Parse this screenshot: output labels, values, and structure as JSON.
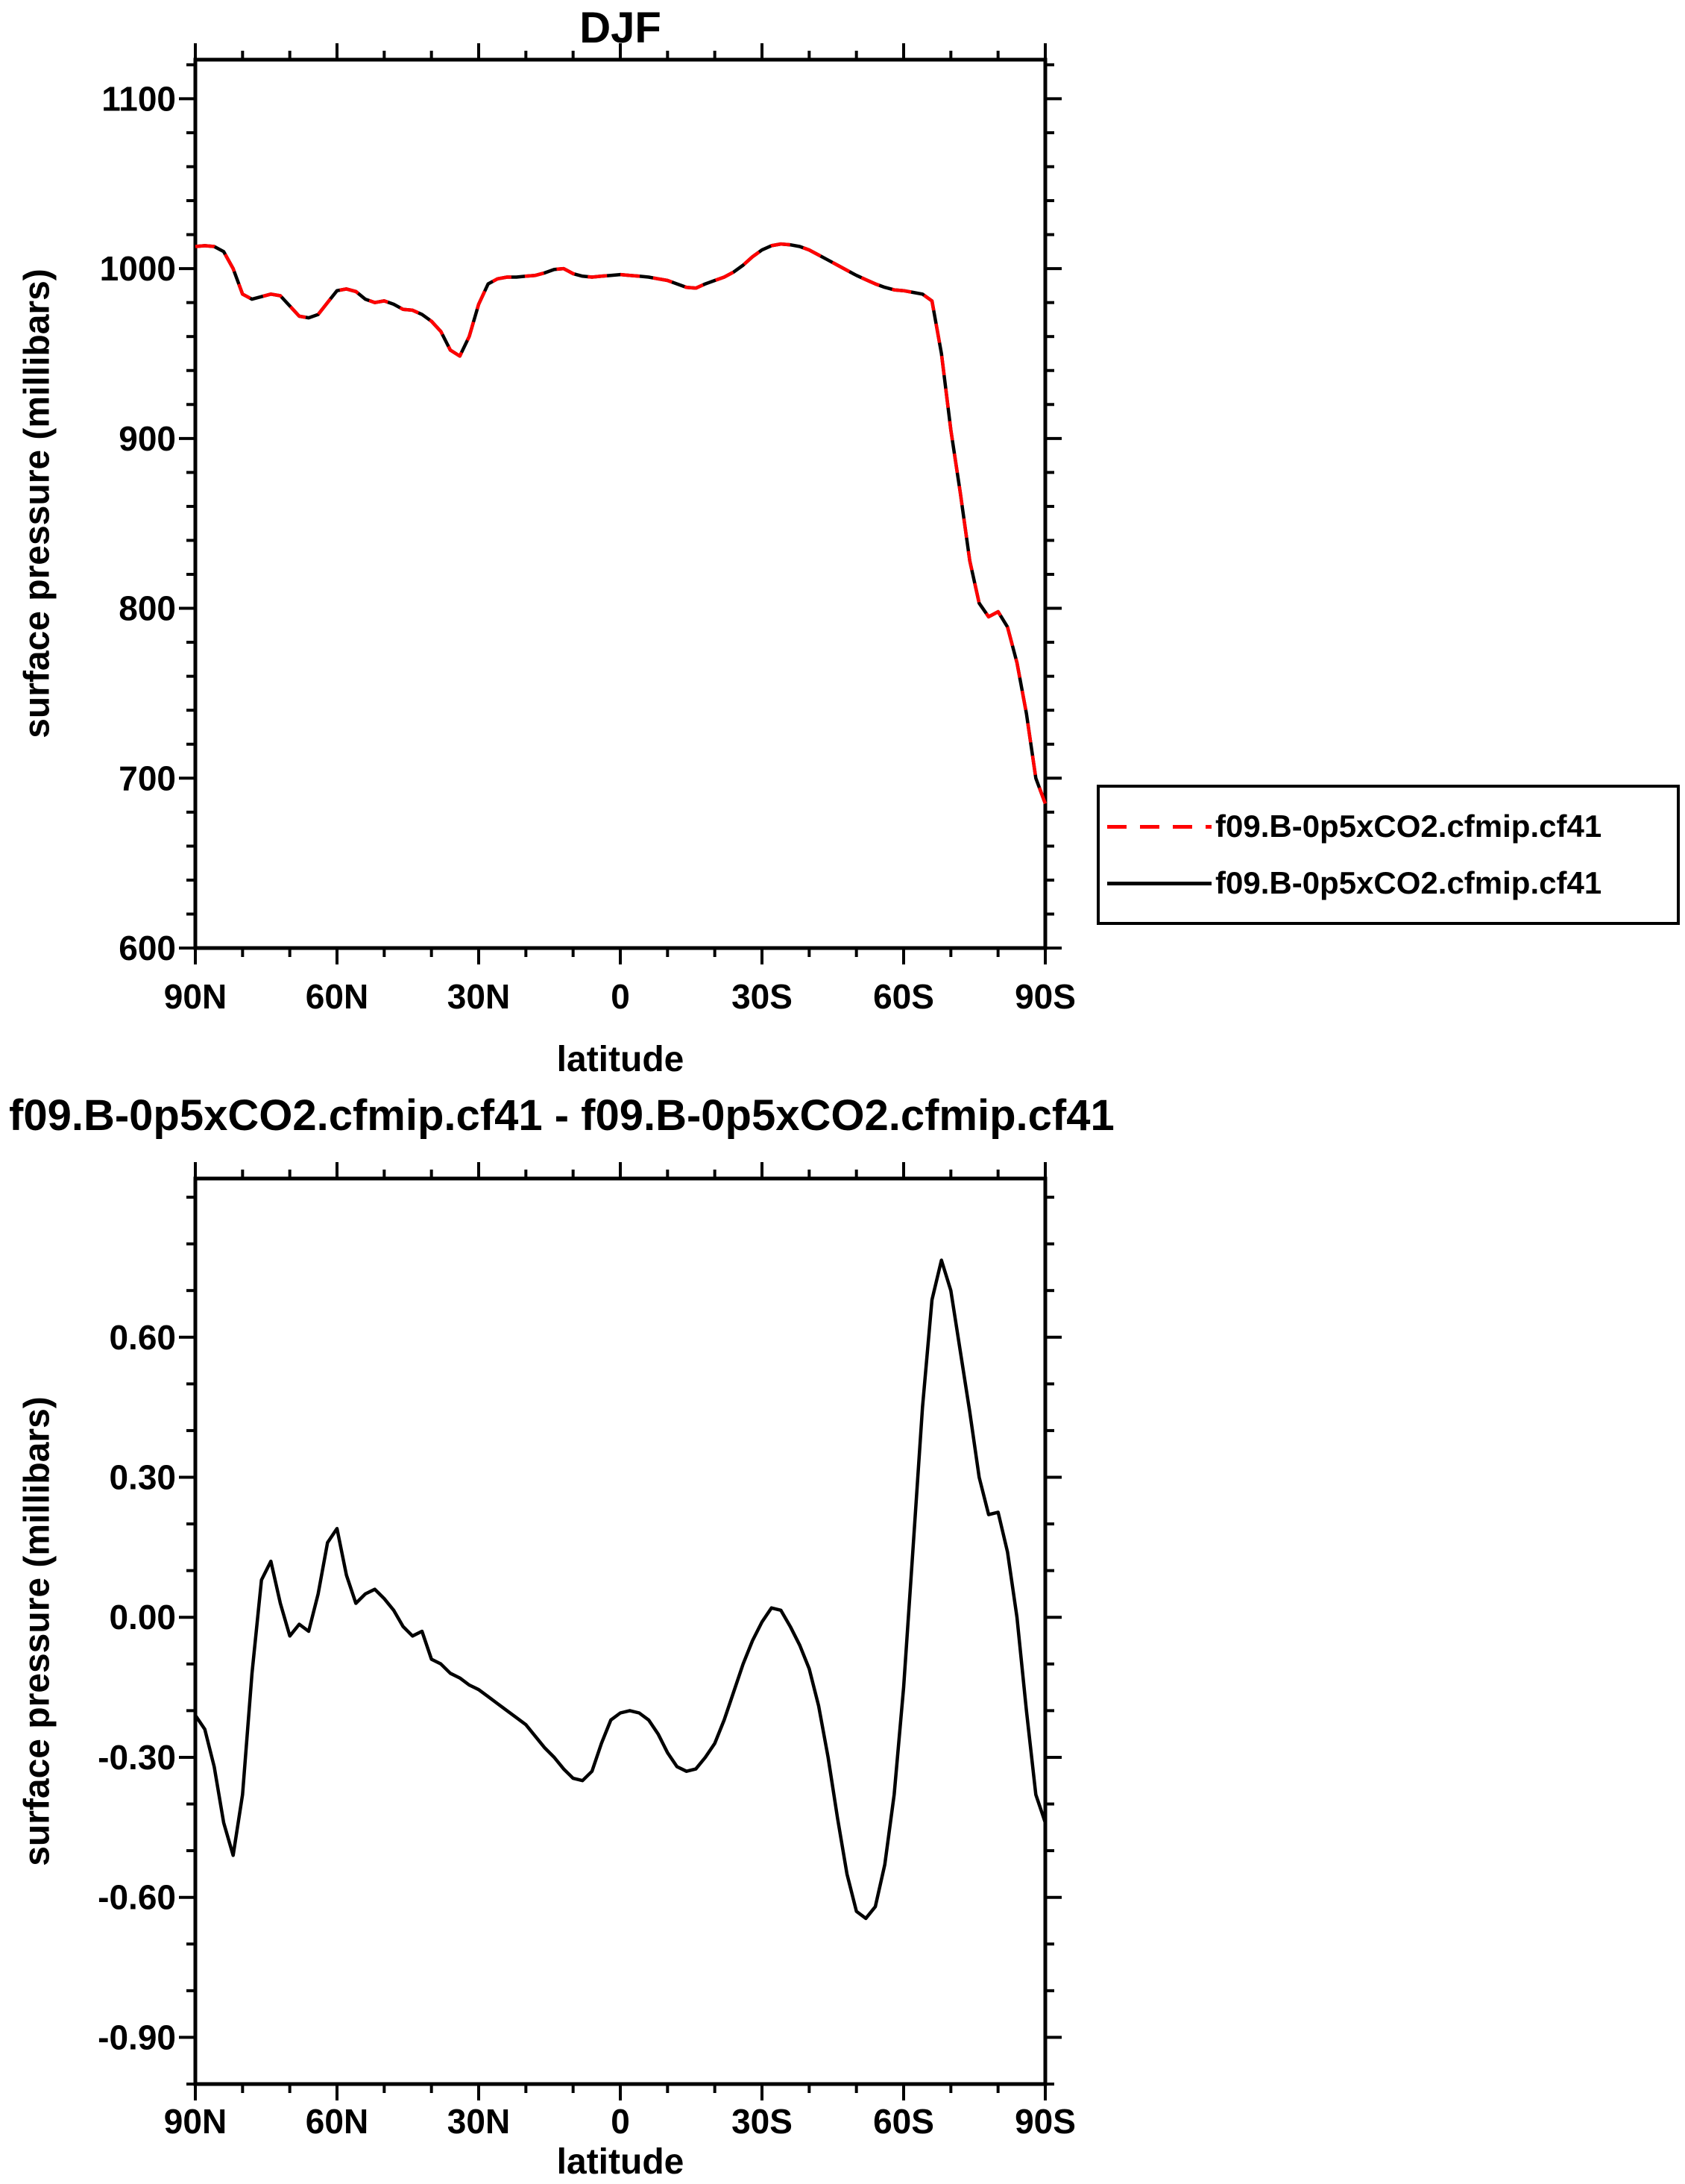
{
  "figure": {
    "background": "#ffffff",
    "line_color": "#000000",
    "accent_color": "#ff0000"
  },
  "chart_data": [
    {
      "type": "line",
      "title": "DJF",
      "xlabel": "latitude",
      "ylabel": "surface pressure (millibars)",
      "xlim": [
        90,
        -90
      ],
      "ylim": [
        600,
        1123
      ],
      "grid": false,
      "legend_position": "right-outside",
      "x_ticks": {
        "major": [
          {
            "v": 90,
            "label": "90N"
          },
          {
            "v": 60,
            "label": "60N"
          },
          {
            "v": 30,
            "label": "30N"
          },
          {
            "v": 0,
            "label": "0"
          },
          {
            "v": -30,
            "label": "30S"
          },
          {
            "v": -60,
            "label": "60S"
          },
          {
            "v": -90,
            "label": "90S"
          }
        ],
        "minor_step": 10
      },
      "y_ticks": {
        "major": [
          {
            "v": 600,
            "label": "600"
          },
          {
            "v": 700,
            "label": "700"
          },
          {
            "v": 800,
            "label": "800"
          },
          {
            "v": 900,
            "label": "900"
          },
          {
            "v": 1000,
            "label": "1000"
          },
          {
            "v": 1100,
            "label": "1100"
          }
        ],
        "minor_step": 20
      },
      "x": [
        90,
        88,
        86,
        84,
        82,
        80,
        78,
        76,
        74,
        72,
        70,
        68,
        66,
        64,
        62,
        60,
        58,
        56,
        54,
        52,
        50,
        48,
        46,
        44,
        42,
        40,
        38,
        36,
        34,
        32,
        30,
        28,
        26,
        24,
        22,
        20,
        18,
        16,
        14,
        12,
        10,
        8,
        6,
        4,
        2,
        0,
        -2,
        -4,
        -6,
        -8,
        -10,
        -12,
        -14,
        -16,
        -18,
        -20,
        -22,
        -24,
        -26,
        -28,
        -30,
        -32,
        -34,
        -36,
        -38,
        -40,
        -42,
        -44,
        -46,
        -48,
        -50,
        -52,
        -54,
        -56,
        -58,
        -60,
        -62,
        -64,
        -66,
        -68,
        -70,
        -72,
        -74,
        -76,
        -78,
        -80,
        -82,
        -84,
        -86,
        -88,
        -90
      ],
      "series": [
        {
          "name": "f09.B-0p5xCO2.cfmip.cf41",
          "color": "#000000",
          "dash": "none",
          "values": [
            1013,
            1013.5,
            1013,
            1010,
            1000,
            985,
            982,
            983.5,
            985,
            984,
            978,
            972,
            971,
            973,
            980,
            987,
            988,
            986.5,
            982,
            980,
            981,
            979,
            976,
            975.5,
            973,
            969,
            963,
            952,
            948.5,
            960,
            979,
            991,
            994,
            995,
            995,
            995.5,
            996,
            997.5,
            999.5,
            1000,
            997,
            995.5,
            995,
            995.5,
            996,
            996.5,
            996,
            995.5,
            995,
            994,
            993,
            991,
            989,
            988.5,
            991,
            993,
            995,
            998,
            1002,
            1007,
            1011,
            1013.5,
            1014.5,
            1014,
            1013,
            1011,
            1008,
            1005,
            1002,
            999,
            996,
            993.5,
            991,
            989,
            987.5,
            987,
            986,
            985,
            981,
            950,
            905,
            868,
            828,
            803,
            795,
            798,
            789,
            768,
            738,
            700,
            685
          ]
        },
        {
          "name": "f09.B-0p5xCO2.cfmip.cf41",
          "color": "#ff0000",
          "dash": "26 18",
          "values": [
            1013,
            1013.5,
            1013,
            1010,
            1000,
            985,
            982,
            983.5,
            985,
            984,
            978,
            972,
            971,
            973,
            980,
            987,
            988,
            986.5,
            982,
            980,
            981,
            979,
            976,
            975.5,
            973,
            969,
            963,
            952,
            948.5,
            960,
            979,
            991,
            994,
            995,
            995,
            995.5,
            996,
            997.5,
            999.5,
            1000,
            997,
            995.5,
            995,
            995.5,
            996,
            996.5,
            996,
            995.5,
            995,
            994,
            993,
            991,
            989,
            988.5,
            991,
            993,
            995,
            998,
            1002,
            1007,
            1011,
            1013.5,
            1014.5,
            1014,
            1013,
            1011,
            1008,
            1005,
            1002,
            999,
            996,
            993.5,
            991,
            989,
            987.5,
            987,
            986,
            985,
            981,
            950,
            905,
            868,
            828,
            803,
            795,
            798,
            789,
            768,
            738,
            700,
            685
          ]
        }
      ],
      "legend": {
        "entries": [
          {
            "label": "f09.B-0p5xCO2.cfmip.cf41",
            "color": "#ff0000",
            "style": "dashed"
          },
          {
            "label": "f09.B-0p5xCO2.cfmip.cf41",
            "color": "#000000",
            "style": "solid"
          }
        ]
      }
    },
    {
      "type": "line",
      "title": "f09.B-0p5xCO2.cfmip.cf41 - f09.B-0p5xCO2.cfmip.cf41",
      "xlabel": "latitude",
      "ylabel": "surface pressure (millibars)",
      "xlim": [
        90,
        -90
      ],
      "ylim": [
        -1.0,
        0.94
      ],
      "grid": false,
      "x_ticks": {
        "major": [
          {
            "v": 90,
            "label": "90N"
          },
          {
            "v": 60,
            "label": "60N"
          },
          {
            "v": 30,
            "label": "30N"
          },
          {
            "v": 0,
            "label": "0"
          },
          {
            "v": -30,
            "label": "30S"
          },
          {
            "v": -60,
            "label": "60S"
          },
          {
            "v": -90,
            "label": "90S"
          }
        ],
        "minor_step": 10
      },
      "y_ticks": {
        "major": [
          {
            "v": -0.9,
            "label": "-0.90"
          },
          {
            "v": -0.6,
            "label": "-0.60"
          },
          {
            "v": -0.3,
            "label": "-0.30"
          },
          {
            "v": 0,
            "label": "0.00"
          },
          {
            "v": 0.3,
            "label": "0.30"
          },
          {
            "v": 0.6,
            "label": "0.60"
          }
        ],
        "minor_step": 0.1
      },
      "x": [
        90,
        88,
        86,
        84,
        82,
        80,
        78,
        76,
        74,
        72,
        70,
        68,
        66,
        64,
        62,
        60,
        58,
        56,
        54,
        52,
        50,
        48,
        46,
        44,
        42,
        40,
        38,
        36,
        34,
        32,
        30,
        28,
        26,
        24,
        22,
        20,
        18,
        16,
        14,
        12,
        10,
        8,
        6,
        4,
        2,
        0,
        -2,
        -4,
        -6,
        -8,
        -10,
        -12,
        -14,
        -16,
        -18,
        -20,
        -22,
        -24,
        -26,
        -28,
        -30,
        -32,
        -34,
        -36,
        -38,
        -40,
        -42,
        -44,
        -46,
        -48,
        -50,
        -52,
        -54,
        -56,
        -58,
        -60,
        -62,
        -64,
        -66,
        -68,
        -70,
        -72,
        -74,
        -76,
        -78,
        -80,
        -82,
        -84,
        -86,
        -88,
        -90
      ],
      "series": [
        {
          "color": "#000000",
          "dash": "none",
          "values": [
            -0.21,
            -0.24,
            -0.32,
            -0.44,
            -0.51,
            -0.38,
            -0.12,
            0.08,
            0.12,
            0.03,
            -0.04,
            -0.015,
            -0.03,
            0.05,
            0.16,
            0.19,
            0.09,
            0.03,
            0.05,
            0.06,
            0.04,
            0.015,
            -0.02,
            -0.04,
            -0.03,
            -0.09,
            -0.1,
            -0.12,
            -0.13,
            -0.145,
            -0.155,
            -0.17,
            -0.185,
            -0.2,
            -0.215,
            -0.23,
            -0.255,
            -0.28,
            -0.3,
            -0.325,
            -0.345,
            -0.35,
            -0.33,
            -0.27,
            -0.22,
            -0.205,
            -0.2,
            -0.205,
            -0.22,
            -0.25,
            -0.29,
            -0.32,
            -0.33,
            -0.325,
            -0.3,
            -0.27,
            -0.22,
            -0.16,
            -0.1,
            -0.05,
            -0.01,
            0.02,
            0.015,
            -0.02,
            -0.06,
            -0.11,
            -0.19,
            -0.3,
            -0.43,
            -0.55,
            -0.63,
            -0.645,
            -0.62,
            -0.53,
            -0.38,
            -0.15,
            0.15,
            0.45,
            0.68,
            0.765,
            0.7,
            0.57,
            0.44,
            0.3,
            0.22,
            0.225,
            0.14,
            0,
            -0.2,
            -0.38,
            -0.44
          ]
        }
      ]
    }
  ]
}
